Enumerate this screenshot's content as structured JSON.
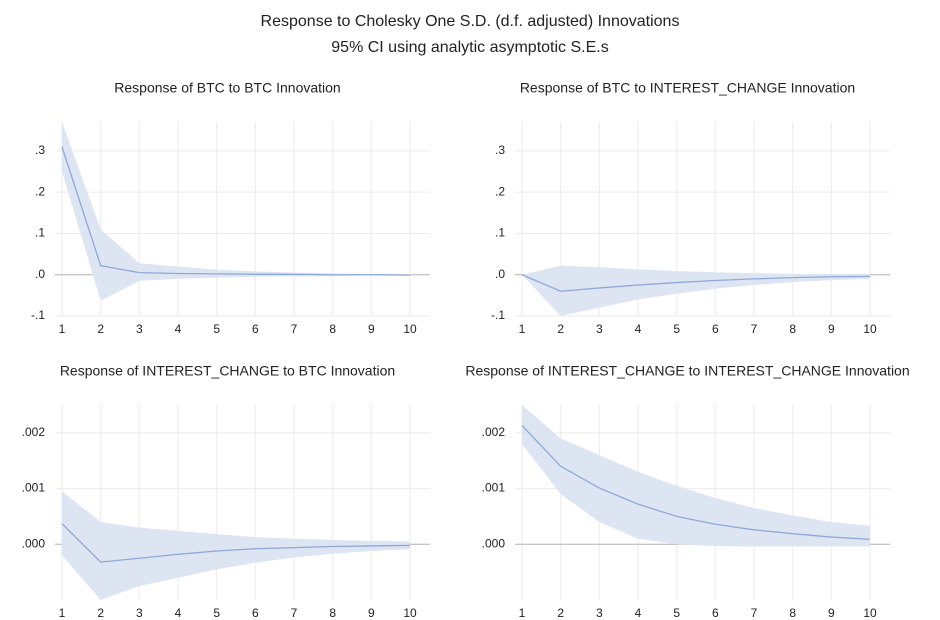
{
  "title": "Response to Cholesky One S.D. (d.f. adjusted) Innovations",
  "subtitle": "95% CI using analytic asymptotic S.E.s",
  "chart_data": [
    {
      "type": "line",
      "title": "Response of BTC to BTC Innovation",
      "categories": [
        "1",
        "2",
        "3",
        "4",
        "5",
        "6",
        "7",
        "8",
        "9",
        "10"
      ],
      "values": [
        0.31,
        0.022,
        0.005,
        0.003,
        0.002,
        0.001,
        0.001,
        0.0,
        0.0,
        -0.001
      ],
      "ci_upper": [
        0.37,
        0.11,
        0.028,
        0.02,
        0.012,
        0.008,
        0.005,
        0.003,
        0.002,
        0.001
      ],
      "ci_lower": [
        0.25,
        -0.063,
        -0.015,
        -0.01,
        -0.007,
        -0.005,
        -0.004,
        -0.003,
        -0.002,
        -0.002
      ],
      "color": "#8fa8d8",
      "band_color": "#dde5f3",
      "ylim": [
        -0.1,
        0.37
      ],
      "yticks": [
        {
          "value": -0.1,
          "label": "-.1"
        },
        {
          "value": 0,
          "label": ".0"
        },
        {
          "value": 0.1,
          "label": ".1"
        },
        {
          "value": 0.2,
          "label": ".2"
        },
        {
          "value": 0.3,
          "label": ".3"
        }
      ],
      "grid": true
    },
    {
      "type": "line",
      "title": "Response of BTC to INTEREST_CHANGE Innovation",
      "categories": [
        "1",
        "2",
        "3",
        "4",
        "5",
        "6",
        "7",
        "8",
        "9",
        "10"
      ],
      "values": [
        0,
        -0.04,
        -0.032,
        -0.025,
        -0.019,
        -0.014,
        -0.01,
        -0.007,
        -0.005,
        -0.004
      ],
      "ci_upper": [
        0,
        0.022,
        0.018,
        0.013,
        0.009,
        0.006,
        0.004,
        0.002,
        0.001,
        0.001
      ],
      "ci_lower": [
        0,
        -0.1,
        -0.08,
        -0.06,
        -0.046,
        -0.034,
        -0.025,
        -0.018,
        -0.013,
        -0.01
      ],
      "color": "#8fa8d8",
      "band_color": "#dde5f3",
      "ylim": [
        -0.1,
        0.37
      ],
      "yticks": [
        {
          "value": -0.1,
          "label": "-.1"
        },
        {
          "value": 0,
          "label": ".0"
        },
        {
          "value": 0.1,
          "label": ".1"
        },
        {
          "value": 0.2,
          "label": ".2"
        },
        {
          "value": 0.3,
          "label": ".3"
        }
      ],
      "grid": true
    },
    {
      "type": "line",
      "title": "Response of INTEREST_CHANGE to BTC Innovation",
      "categories": [
        "1",
        "2",
        "3",
        "4",
        "5",
        "6",
        "7",
        "8",
        "9",
        "10"
      ],
      "values": [
        0.00037,
        -0.00032,
        -0.00025,
        -0.00018,
        -0.00012,
        -8e-05,
        -6e-05,
        -4e-05,
        -3e-05,
        -2e-05
      ],
      "ci_upper": [
        0.00095,
        0.0004,
        0.0003,
        0.00024,
        0.00018,
        0.00013,
        0.0001,
        8e-05,
        6e-05,
        5e-05
      ],
      "ci_lower": [
        -0.0002,
        -0.001,
        -0.00075,
        -0.0006,
        -0.00045,
        -0.00033,
        -0.00024,
        -0.00017,
        -0.00012,
        -9e-05
      ],
      "color": "#8fa8d8",
      "band_color": "#dde5f3",
      "ylim": [
        -0.001,
        0.0025
      ],
      "yticks": [
        {
          "value": 0,
          "label": ".000"
        },
        {
          "value": 0.001,
          "label": ".001"
        },
        {
          "value": 0.002,
          "label": ".002"
        }
      ],
      "grid": true
    },
    {
      "type": "line",
      "title": "Response of INTEREST_CHANGE to INTEREST_CHANGE Innovation",
      "categories": [
        "1",
        "2",
        "3",
        "4",
        "5",
        "6",
        "7",
        "8",
        "9",
        "10"
      ],
      "values": [
        0.00213,
        0.0014,
        0.00101,
        0.00072,
        0.0005,
        0.00036,
        0.00026,
        0.00019,
        0.00013,
        9e-05
      ],
      "ci_upper": [
        0.0025,
        0.0019,
        0.0016,
        0.0013,
        0.00105,
        0.00083,
        0.00065,
        0.00052,
        0.0004,
        0.00033
      ],
      "ci_lower": [
        0.0018,
        0.0009,
        0.0004,
        0.0001,
        0.0,
        -3e-05,
        -4e-05,
        -4e-05,
        -4e-05,
        -4e-05
      ],
      "color": "#8fa8d8",
      "band_color": "#dde5f3",
      "ylim": [
        -0.001,
        0.0025
      ],
      "yticks": [
        {
          "value": 0,
          "label": ".000"
        },
        {
          "value": 0.001,
          "label": ".001"
        },
        {
          "value": 0.002,
          "label": ".002"
        }
      ],
      "grid": true
    }
  ]
}
